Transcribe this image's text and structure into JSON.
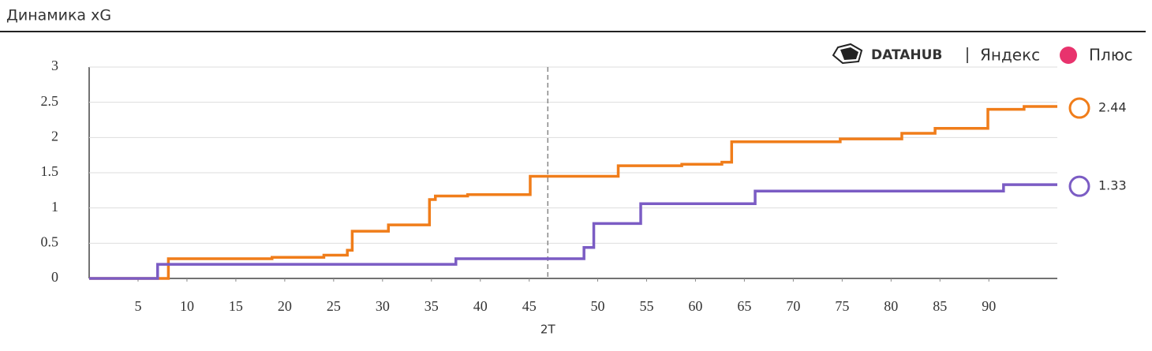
{
  "chart_data": {
    "type": "step",
    "title": "Динамика xG",
    "brand": {
      "left": "DATAHUB",
      "right": "Яндекс",
      "plus": "Плюс"
    },
    "xlim": [
      0,
      99
    ],
    "ylim": [
      0,
      3
    ],
    "xticks": [
      5,
      10,
      15,
      20,
      25,
      30,
      35,
      40,
      45,
      {
        "value": 52,
        "label": "50"
      },
      {
        "value": 57,
        "label": "55"
      },
      {
        "value": 62,
        "label": "60"
      },
      {
        "value": 67,
        "label": "65"
      },
      {
        "value": 72,
        "label": "70"
      },
      {
        "value": 77,
        "label": "75"
      },
      {
        "value": 82,
        "label": "80"
      },
      {
        "value": 87,
        "label": "85"
      },
      {
        "value": 92,
        "label": "90"
      }
    ],
    "yticks": [
      0,
      0.5,
      1,
      1.5,
      2,
      2.5,
      3
    ],
    "grid": true,
    "half_marker": {
      "x": 46.9,
      "label": "2T"
    },
    "series": [
      {
        "color": "#f07d1a",
        "end_label": "2.44",
        "x": [
          0,
          8.1,
          18.7,
          24,
          26.4,
          26.9,
          30.6,
          34.8,
          35.4,
          38.7,
          45.1,
          54.1,
          60.6,
          64.7,
          65.7,
          76.8,
          83.1,
          86.5,
          91.9,
          95.6,
          99
        ],
        "values": [
          0,
          0.28,
          0.3,
          0.33,
          0.4,
          0.67,
          0.76,
          1.12,
          1.17,
          1.19,
          1.45,
          1.6,
          1.62,
          1.65,
          1.94,
          1.98,
          2.06,
          2.13,
          2.4,
          2.44,
          2.44
        ]
      },
      {
        "color": "#7b5cc4",
        "end_label": "1.33",
        "x": [
          0,
          7,
          37.5,
          50.6,
          51.6,
          56.4,
          68.1,
          93.5,
          99
        ],
        "values": [
          0,
          0.2,
          0.28,
          0.44,
          0.78,
          1.06,
          1.24,
          1.33,
          1.33
        ]
      }
    ]
  }
}
